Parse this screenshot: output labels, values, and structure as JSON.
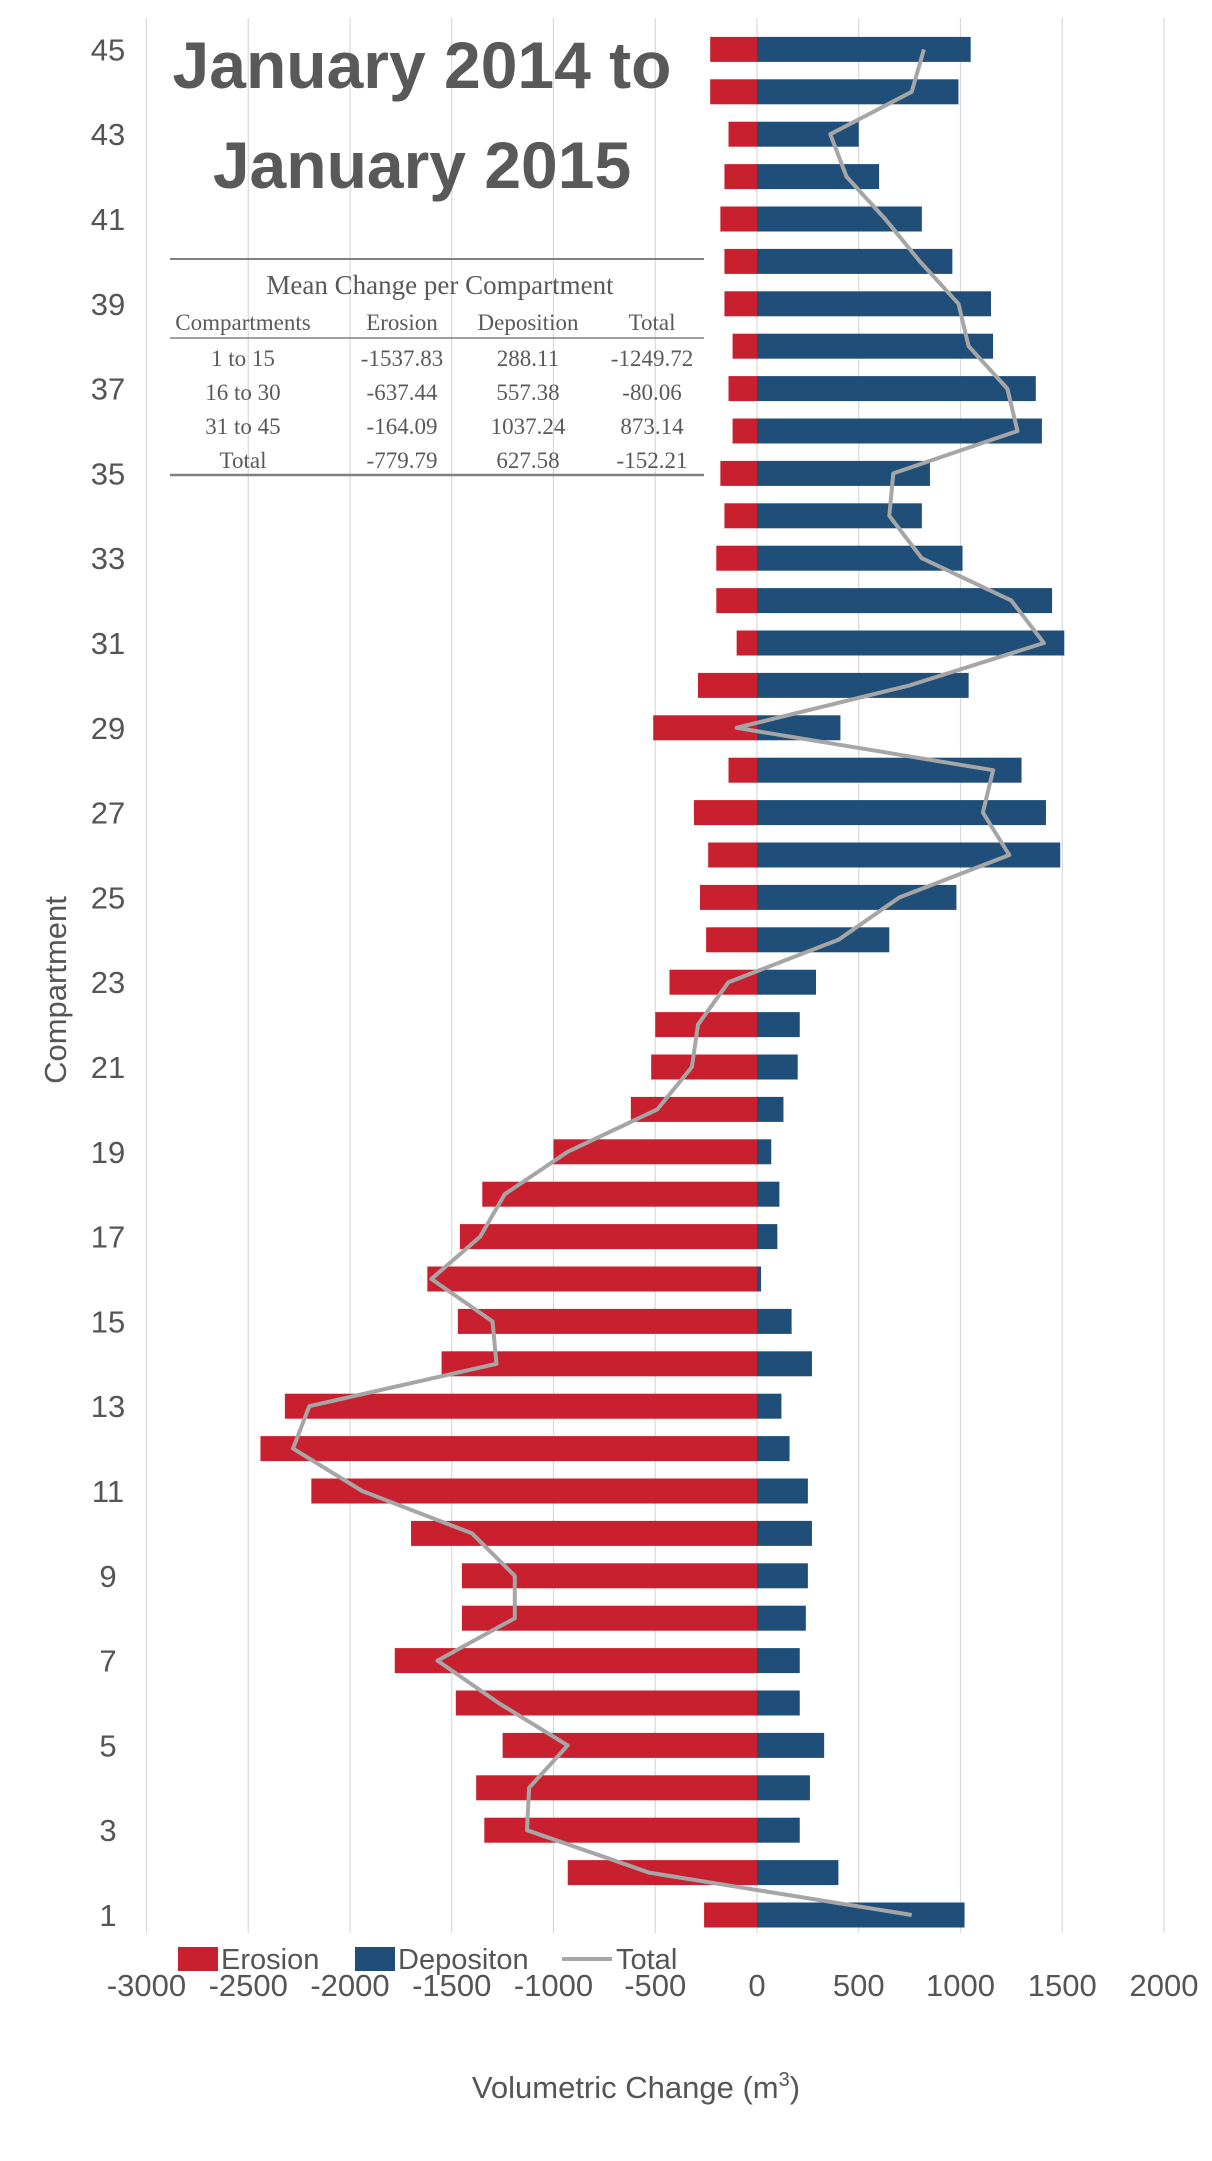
{
  "chart_data": {
    "type": "bar",
    "orientation": "horizontal",
    "title_lines": [
      "January 2014 to",
      "January 2015"
    ],
    "xlabel": "Volumetric Change (m",
    "xlabel_sup": "3",
    "xlabel_close": ")",
    "ylabel": "Compartment",
    "xlim": [
      -3000,
      2000
    ],
    "x_ticks": [
      -3000,
      -2500,
      -2000,
      -1500,
      -1000,
      -500,
      0,
      500,
      1000,
      1500,
      2000
    ],
    "y_tick_labels": [
      "1",
      "3",
      "5",
      "7",
      "9",
      "11",
      "13",
      "15",
      "17",
      "19",
      "21",
      "23",
      "25",
      "27",
      "29",
      "31",
      "33",
      "35",
      "37",
      "39",
      "41",
      "43",
      "45"
    ],
    "grid": "vertical",
    "legend_position": "bottom-left",
    "colors": {
      "erosion": "#c8202f",
      "deposition": "#1f4e79",
      "total": "#a6a6a6"
    },
    "categories": [
      1,
      2,
      3,
      4,
      5,
      6,
      7,
      8,
      9,
      10,
      11,
      12,
      13,
      14,
      15,
      16,
      17,
      18,
      19,
      20,
      21,
      22,
      23,
      24,
      25,
      26,
      27,
      28,
      29,
      30,
      31,
      32,
      33,
      34,
      35,
      36,
      37,
      38,
      39,
      40,
      41,
      42,
      43,
      44,
      45
    ],
    "series": [
      {
        "name": "Erosion",
        "values": [
          -260,
          -930,
          -1340,
          -1380,
          -1250,
          -1480,
          -1780,
          -1450,
          -1450,
          -1700,
          -2190,
          -2440,
          -2320,
          -1550,
          -1470,
          -1620,
          -1460,
          -1350,
          -1000,
          -620,
          -520,
          -500,
          -430,
          -250,
          -280,
          -240,
          -310,
          -140,
          -510,
          -290,
          -100,
          -200,
          -200,
          -160,
          -180,
          -120,
          -140,
          -120,
          -160,
          -160,
          -180,
          -160,
          -140,
          -230,
          -230
        ]
      },
      {
        "name": "Depositon",
        "values": [
          1020,
          400,
          210,
          260,
          330,
          210,
          210,
          240,
          250,
          270,
          250,
          160,
          120,
          270,
          170,
          20,
          100,
          110,
          70,
          130,
          200,
          210,
          290,
          650,
          980,
          1490,
          1420,
          1300,
          410,
          1040,
          1510,
          1450,
          1010,
          810,
          850,
          1400,
          1370,
          1160,
          1150,
          960,
          810,
          600,
          500,
          990,
          1050
        ]
      },
      {
        "name": "Total",
        "values": [
          760,
          -530,
          -1130,
          -1120,
          -930,
          -1270,
          -1570,
          -1190,
          -1190,
          -1400,
          -1940,
          -2280,
          -2200,
          -1280,
          -1300,
          -1600,
          -1360,
          -1240,
          -930,
          -490,
          -320,
          -290,
          -140,
          400,
          700,
          1240,
          1110,
          1160,
          -100,
          750,
          1410,
          1250,
          810,
          650,
          670,
          1280,
          1230,
          1040,
          990,
          800,
          630,
          440,
          360,
          760,
          820
        ]
      }
    ],
    "inset_table": {
      "caption": "Mean Change per Compartment",
      "columns": [
        "Compartments",
        "Erosion",
        "Deposition",
        "Total"
      ],
      "rows": [
        [
          "1 to 15",
          "-1537.83",
          "288.11",
          "-1249.72"
        ],
        [
          "16 to 30",
          "-637.44",
          "557.38",
          "-80.06"
        ],
        [
          "31 to 45",
          "-164.09",
          "1037.24",
          "873.14"
        ],
        [
          "Total",
          "-779.79",
          "627.58",
          "-152.21"
        ]
      ]
    }
  }
}
